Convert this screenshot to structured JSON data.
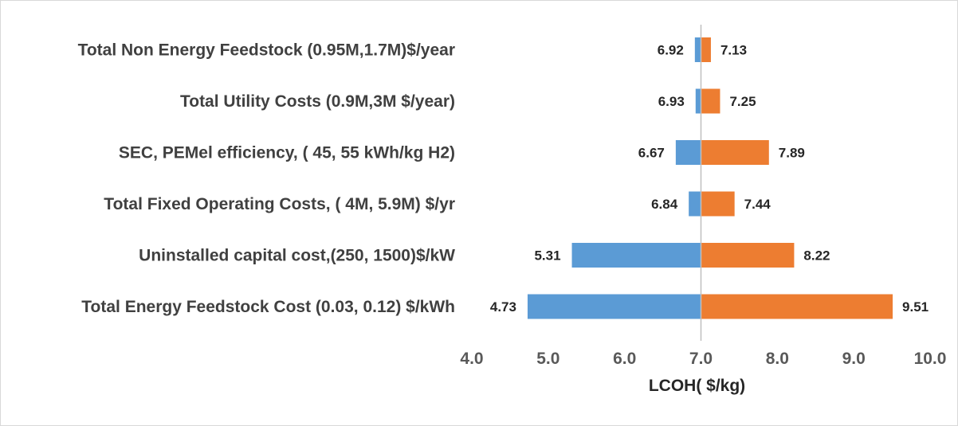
{
  "chart_data": {
    "type": "bar",
    "orientation": "horizontal",
    "variant": "tornado",
    "base_value": 7.0,
    "categories": [
      "Total Non Energy Feedstock (0.95M,1.7M)$/year",
      "Total Utility Costs (0.9M,3M $/year)",
      "SEC, PEMel efficiency, ( 45, 55 kWh/kg H2)",
      "Total Fixed Operating Costs, ( 4M, 5.9M) $/yr",
      "Uninstalled capital cost,(250, 1500)$/kW",
      "Total Energy Feedstock Cost (0.03, 0.12) $/kWh"
    ],
    "series": [
      {
        "values": [
          6.92,
          6.93,
          6.67,
          6.84,
          5.31,
          4.73
        ],
        "color": "#5b9bd5"
      },
      {
        "values": [
          7.13,
          7.25,
          7.89,
          7.44,
          8.22,
          9.51
        ],
        "color": "#ed7d31"
      }
    ],
    "value_labels": [
      [
        "6.92",
        "7.13"
      ],
      [
        "6.93",
        "7.25"
      ],
      [
        "6.67",
        "7.89"
      ],
      [
        "6.84",
        "7.44"
      ],
      [
        "5.31",
        "8.22"
      ],
      [
        "4.73",
        "9.51"
      ]
    ],
    "xlim": [
      4.0,
      10.0
    ],
    "xticks": [
      "4.0",
      "5.0",
      "6.0",
      "7.0",
      "8.0",
      "9.0",
      "10.0"
    ],
    "xlabel": "LCOH( $/kg)",
    "title": "",
    "grid": false,
    "legend": "none"
  }
}
